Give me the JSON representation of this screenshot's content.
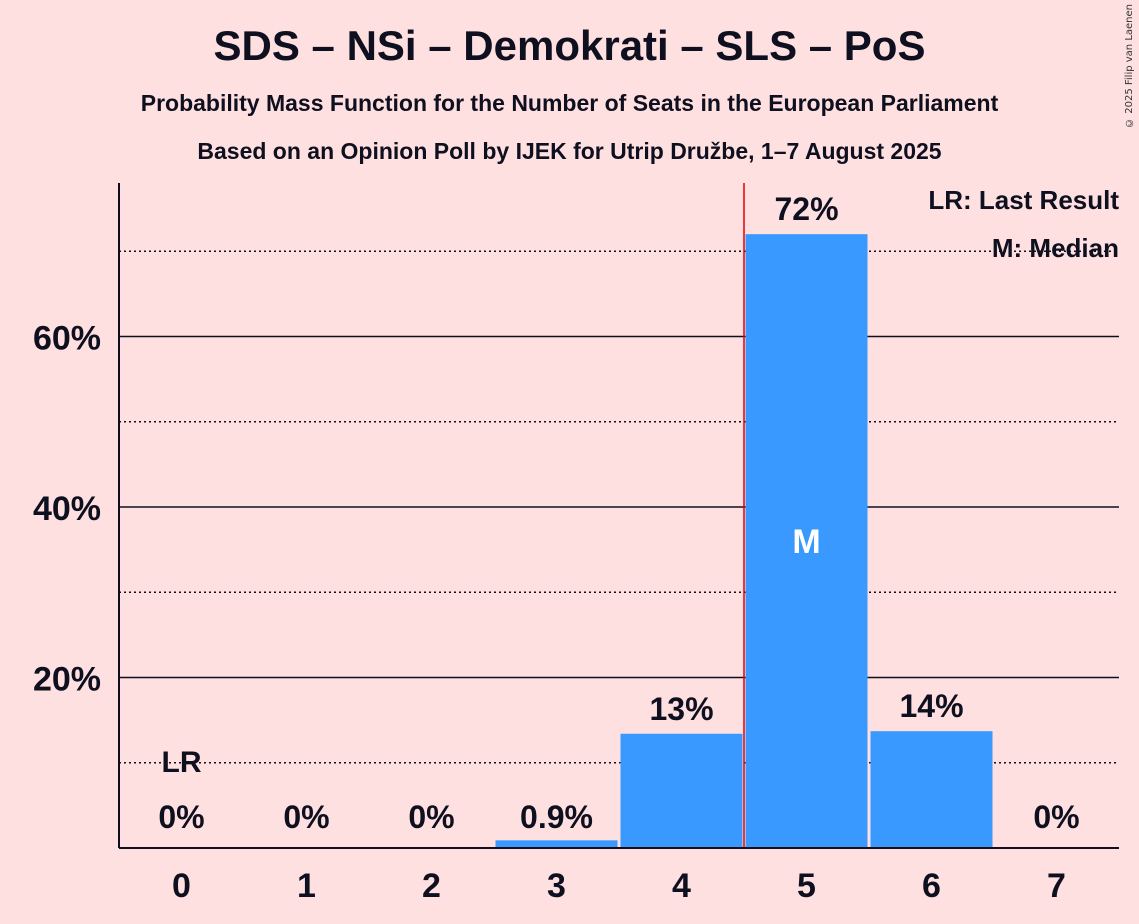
{
  "title": "SDS – NSi – Demokrati – SLS – PoS",
  "subtitle1": "Probability Mass Function for the Number of Seats in the European Parliament",
  "subtitle2": "Based on an Opinion Poll by IJEK for Utrip Družbe, 1–7 August 2025",
  "copyright": "© 2025 Filip van Laenen",
  "legend": {
    "last_result": "LR: Last Result",
    "median": "M: Median"
  },
  "colors": {
    "background": "#FFE0E0",
    "bar": "#3A99FF",
    "last_result_line": "#E00000",
    "text": "#0E1020"
  },
  "chart_data": {
    "type": "bar",
    "categories": [
      "0",
      "1",
      "2",
      "3",
      "4",
      "5",
      "6",
      "7"
    ],
    "values": [
      0,
      0,
      0,
      0.9,
      13.4,
      72,
      13.7,
      0
    ],
    "labels": [
      "0%",
      "0%",
      "0%",
      "0.9%",
      "13%",
      "72%",
      "14%",
      "0%"
    ],
    "ylim": [
      0,
      78
    ],
    "yticks": [
      20,
      40,
      60
    ],
    "ytick_labels": [
      "20%",
      "40%",
      "60%"
    ],
    "minor_gridlines": [
      10,
      30,
      50,
      70
    ],
    "median_index": 5,
    "median_label": "M",
    "last_result_index": 0,
    "last_result_label": "LR",
    "last_result_line_between": [
      4,
      5
    ],
    "legend_position": "top-right"
  }
}
